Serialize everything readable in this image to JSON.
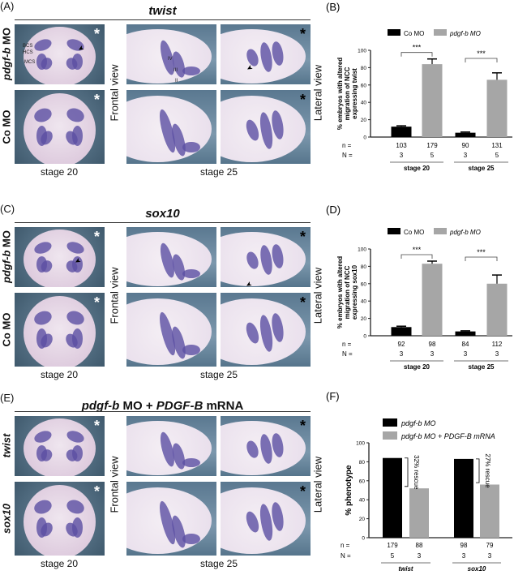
{
  "panels": {
    "A": {
      "label": "(A)",
      "title": "twist",
      "row_labels": [
        "pdgf-b MO",
        "Co MO"
      ],
      "annotations": [
        "BCS",
        "HCS",
        "MCS",
        "IV",
        "III",
        "II"
      ],
      "stage_left": "stage 20",
      "stage_right": "stage 25",
      "view_left": "Frontal view",
      "view_right": "Lateral view",
      "asterisk": "*"
    },
    "C": {
      "label": "(C)",
      "title": "sox10",
      "row_labels": [
        "pdgf-b MO",
        "Co MO"
      ],
      "stage_left": "stage 20",
      "stage_right": "stage 25",
      "view_left": "Frontal view",
      "view_right": "Lateral view",
      "asterisk": "*"
    },
    "E": {
      "label": "(E)",
      "title_parts": [
        "pdgf-b",
        " MO + ",
        "PDGF-B",
        " mRNA"
      ],
      "row_labels": [
        "twist",
        "sox10"
      ],
      "stage_left": "stage 20",
      "stage_right": "stage 25",
      "view_left": "Frontal view",
      "view_right": "Lateral view",
      "asterisk": "*"
    },
    "B": {
      "label": "(B)"
    },
    "D": {
      "label": "(D)"
    },
    "F": {
      "label": "(F)"
    }
  },
  "colors": {
    "co_mo": "#000000",
    "pdgf_mo": "#a6a6a6",
    "stain": "#5b4fa3"
  },
  "chart_data": [
    {
      "panel": "B",
      "type": "bar",
      "ylabel": [
        "% embryos with altered",
        "migration of NCC",
        "expressing twist"
      ],
      "ylim": [
        0,
        100
      ],
      "yticks": [
        0,
        20,
        40,
        60,
        80,
        100
      ],
      "legend": [
        "Co MO",
        "pdgf-b MO"
      ],
      "legend_placement": "top",
      "groups": [
        "stage 20",
        "stage 25"
      ],
      "series": [
        {
          "name": "Co MO",
          "values": [
            12,
            5
          ],
          "errors": [
            1,
            0.8
          ]
        },
        {
          "name": "pdgf-b MO",
          "values": [
            84,
            66
          ],
          "errors": [
            6,
            8
          ]
        }
      ],
      "n": [
        "103",
        "179",
        "90",
        "131"
      ],
      "N": [
        "3",
        "5",
        "3",
        "5"
      ],
      "significance": [
        "***",
        "***"
      ]
    },
    {
      "panel": "D",
      "type": "bar",
      "ylabel": [
        "% embryos with altered",
        "migration of NCC",
        "expressing sox10"
      ],
      "ylim": [
        0,
        100
      ],
      "yticks": [
        0,
        20,
        40,
        60,
        80,
        100
      ],
      "legend": [
        "Co MO",
        "pdgf-b MO"
      ],
      "legend_placement": "top",
      "groups": [
        "stage 20",
        "stage 25"
      ],
      "series": [
        {
          "name": "Co MO",
          "values": [
            10,
            5
          ],
          "errors": [
            1,
            0.7
          ]
        },
        {
          "name": "pdgf-b MO",
          "values": [
            83,
            60
          ],
          "errors": [
            3,
            10
          ]
        }
      ],
      "n": [
        "92",
        "98",
        "84",
        "112"
      ],
      "N": [
        "3",
        "3",
        "3",
        "3"
      ],
      "significance": [
        "***",
        "***"
      ]
    },
    {
      "panel": "F",
      "type": "bar",
      "ylabel": [
        "% phenotype"
      ],
      "ylim": [
        0,
        100
      ],
      "yticks": [
        0,
        20,
        40,
        60,
        80,
        100
      ],
      "legend": [
        "pdgf-b MO",
        "pdgf-b MO + PDGF-B mRNA"
      ],
      "legend_placement": "top",
      "groups": [
        "twist",
        "sox10"
      ],
      "series": [
        {
          "name": "pdgf-b MO",
          "values": [
            84,
            83
          ]
        },
        {
          "name": "pdgf-b MO + PDGF-B mRNA",
          "values": [
            52,
            56
          ]
        }
      ],
      "n": [
        "179",
        "88",
        "98",
        "79"
      ],
      "N": [
        "5",
        "3",
        "3",
        "3"
      ],
      "rescue": [
        "32% rescue",
        "27% rescue"
      ]
    }
  ],
  "row_prefix": {
    "n": "n =",
    "N": "N ="
  }
}
